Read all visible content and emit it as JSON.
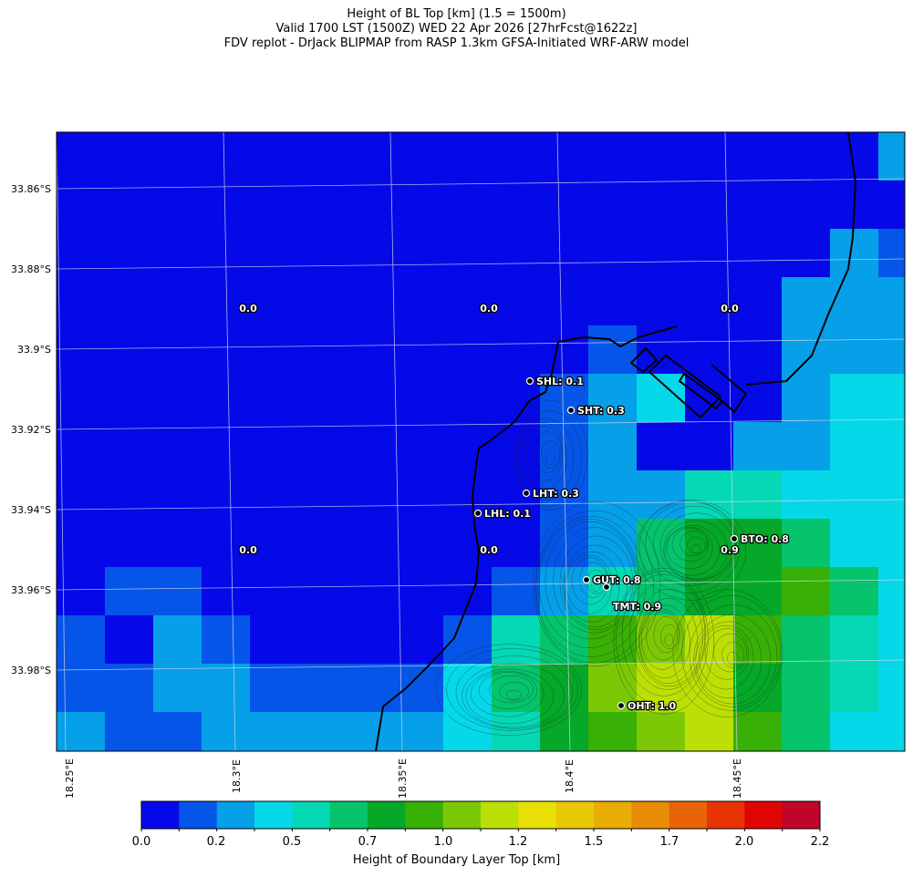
{
  "titles": {
    "line1": "Height of BL Top [km] (1.5 = 1500m)",
    "line2": "Valid 1700 LST (1500Z) WED 22 Apr 2026 [27hrFcst@1622z]",
    "line3": "FDV replot - DrJack BLIPMAP from RASP 1.3km GFSA-Initiated WRF-ARW model"
  },
  "axes": {
    "lat_labels": [
      "33.86°S",
      "33.88°S",
      "33.9°S",
      "33.92°S",
      "33.94°S",
      "33.96°S",
      "33.98°S"
    ],
    "lon_labels": [
      "18.25°E",
      "18.3°E",
      "18.35°E",
      "18.4°E",
      "18.45°E"
    ]
  },
  "colorbar": {
    "label": "Height of Boundary Layer Top [km]",
    "tick_labels": [
      "0.0",
      "0.2",
      "0.5",
      "0.7",
      "1.0",
      "1.2",
      "1.5",
      "1.7",
      "2.0",
      "2.2"
    ],
    "colors": [
      "#0509e8",
      "#0556e8",
      "#05a0e8",
      "#05d8e8",
      "#05d8b4",
      "#05c46c",
      "#05a828",
      "#38b005",
      "#7cc805",
      "#bce005",
      "#e8e005",
      "#e8c805",
      "#e8ac05",
      "#e88c05",
      "#e86405",
      "#e83405",
      "#e00505",
      "#c00528"
    ]
  },
  "stations": [
    {
      "label": "SHL: 0.1"
    },
    {
      "label": "SHT: 0.3"
    },
    {
      "label": "LHT: 0.3"
    },
    {
      "label": "LHL: 0.1"
    },
    {
      "label": "BTO: 0.8"
    },
    {
      "label": "GUT: 0.8"
    },
    {
      "label": "TMT: 0.9"
    },
    {
      "label": "OHT: 1.0"
    }
  ],
  "value_labels": [
    "0.0",
    "0.0",
    "0.0",
    "0.0",
    "0.0",
    "0.9"
  ]
}
